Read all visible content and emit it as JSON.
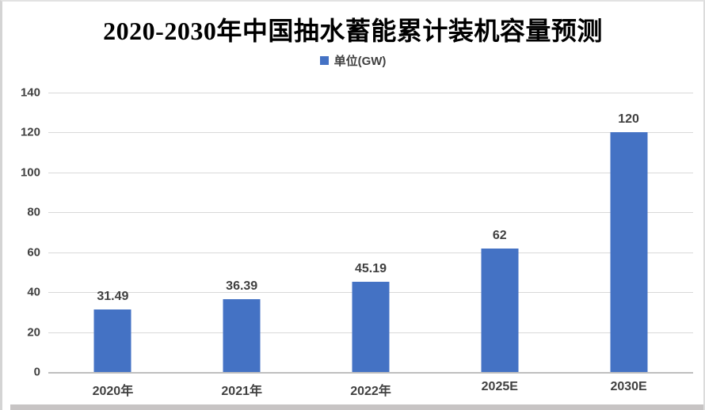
{
  "title": "2020-2030年中国抽水蓄能累计装机容量预测",
  "legend": {
    "label": "单位(GW)",
    "marker_color": "#4472C4"
  },
  "chart_data": {
    "type": "bar",
    "title": "2020-2030年中国抽水蓄能累计装机容量预测",
    "categories": [
      "2020年",
      "2021年",
      "2022年",
      "2025E",
      "2030E"
    ],
    "values": [
      31.49,
      36.39,
      45.19,
      62,
      120
    ],
    "data_labels": [
      "31.49",
      "36.39",
      "45.19",
      "62",
      "120"
    ],
    "series_name": "单位(GW)",
    "legend_position": "top",
    "xlabel": "",
    "ylabel": "",
    "ylim": [
      0,
      140
    ],
    "yticks": [
      0,
      20,
      40,
      60,
      80,
      100,
      120,
      140
    ],
    "grid": true,
    "bar_color": "#4472C4",
    "gridline_color": "#D9D9D9",
    "axis_line_color": "#BFBFBF",
    "label_color": "#404040"
  }
}
